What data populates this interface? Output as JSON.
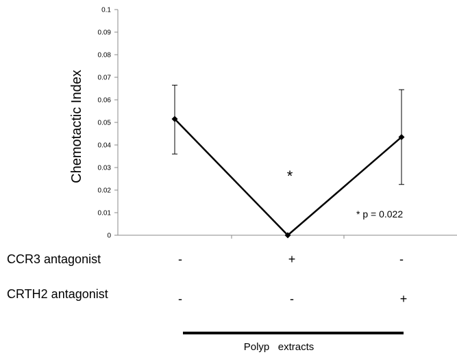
{
  "chart_data": {
    "type": "line",
    "ylabel": "Chemotactic Index",
    "ylim": [
      0,
      0.1
    ],
    "yticks": [
      "0",
      "0.01",
      "0.02",
      "0.03",
      "0.04",
      "0.05",
      "0.06",
      "0.07",
      "0.08",
      "0.09",
      "0.1"
    ],
    "grid": false,
    "points": [
      {
        "y": 0.0515,
        "err_low": 0.036,
        "err_high": 0.0665
      },
      {
        "y": 0.0,
        "err_low": 0.0,
        "err_high": 0.0
      },
      {
        "y": 0.0435,
        "err_low": 0.0225,
        "err_high": 0.0645
      }
    ],
    "significance_marker": "*",
    "significance_point": 1,
    "annotation": "*  p = 0.022"
  },
  "conditions": {
    "rows": [
      {
        "label": "CCR3 antagonist",
        "values": [
          "-",
          "+",
          "-"
        ]
      },
      {
        "label": "CRTH2  antagonist",
        "values": [
          "-",
          "-",
          "+"
        ]
      }
    ],
    "group_label": "Polyp   extracts"
  }
}
